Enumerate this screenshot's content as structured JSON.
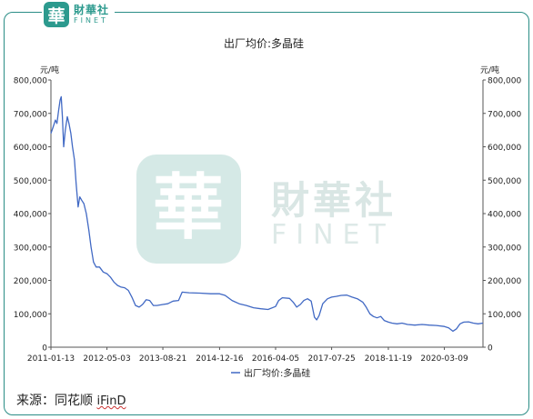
{
  "brand": {
    "name_cn": "財華社",
    "name_en": "FINET",
    "logo_char": "華"
  },
  "source": {
    "label": "来源：同花顺",
    "provider": "iFinD"
  },
  "colors": {
    "line": "#4169c4",
    "frame": "#2a8d86",
    "brand": "#2c9a8e",
    "watermark": "#cfe5e2"
  },
  "chart_data": {
    "type": "line",
    "title": "出厂均价:多晶硅",
    "ylabel_left": "元/吨",
    "ylabel_right": "元/吨",
    "ylim": [
      0,
      800000
    ],
    "yticks": [
      "0",
      "100,000",
      "200,000",
      "300,000",
      "400,000",
      "500,000",
      "600,000",
      "700,000",
      "800,000"
    ],
    "xlim": [
      "2011-01-13",
      "2021-01-31"
    ],
    "xticks": [
      "2011-01-13",
      "2012-05-03",
      "2013-08-21",
      "2014-12-16",
      "2016-04-05",
      "2017-07-25",
      "2018-11-19",
      "2020-03-09"
    ],
    "grid": false,
    "legend_position": "bottom",
    "series": [
      {
        "name": "出厂均价:多晶硅",
        "color": "#4169c4",
        "points": [
          [
            "2011-01-13",
            640000
          ],
          [
            "2011-02-01",
            660000
          ],
          [
            "2011-02-20",
            680000
          ],
          [
            "2011-03-05",
            670000
          ],
          [
            "2011-03-20",
            710000
          ],
          [
            "2011-04-01",
            740000
          ],
          [
            "2011-04-10",
            750000
          ],
          [
            "2011-04-20",
            690000
          ],
          [
            "2011-05-01",
            600000
          ],
          [
            "2011-05-15",
            650000
          ],
          [
            "2011-06-01",
            690000
          ],
          [
            "2011-06-15",
            670000
          ],
          [
            "2011-07-01",
            640000
          ],
          [
            "2011-07-15",
            600000
          ],
          [
            "2011-08-01",
            560000
          ],
          [
            "2011-08-15",
            490000
          ],
          [
            "2011-09-01",
            420000
          ],
          [
            "2011-09-15",
            450000
          ],
          [
            "2011-10-01",
            440000
          ],
          [
            "2011-10-20",
            430000
          ],
          [
            "2011-11-10",
            400000
          ],
          [
            "2011-12-01",
            350000
          ],
          [
            "2011-12-20",
            300000
          ],
          [
            "2012-01-10",
            255000
          ],
          [
            "2012-02-01",
            240000
          ],
          [
            "2012-03-01",
            240000
          ],
          [
            "2012-04-01",
            225000
          ],
          [
            "2012-05-03",
            220000
          ],
          [
            "2012-06-01",
            210000
          ],
          [
            "2012-07-01",
            195000
          ],
          [
            "2012-08-01",
            185000
          ],
          [
            "2012-09-01",
            180000
          ],
          [
            "2012-10-01",
            178000
          ],
          [
            "2012-11-01",
            170000
          ],
          [
            "2012-12-01",
            150000
          ],
          [
            "2013-01-01",
            125000
          ],
          [
            "2013-02-01",
            120000
          ],
          [
            "2013-03-01",
            128000
          ],
          [
            "2013-04-01",
            142000
          ],
          [
            "2013-05-01",
            140000
          ],
          [
            "2013-06-01",
            125000
          ],
          [
            "2013-07-01",
            125000
          ],
          [
            "2013-08-21",
            128000
          ],
          [
            "2013-10-01",
            130000
          ],
          [
            "2013-11-15",
            138000
          ],
          [
            "2014-01-01",
            140000
          ],
          [
            "2014-02-01",
            165000
          ],
          [
            "2014-04-01",
            163000
          ],
          [
            "2014-07-01",
            162000
          ],
          [
            "2014-10-01",
            160000
          ],
          [
            "2014-12-16",
            160000
          ],
          [
            "2015-02-01",
            155000
          ],
          [
            "2015-04-01",
            140000
          ],
          [
            "2015-06-01",
            130000
          ],
          [
            "2015-08-01",
            125000
          ],
          [
            "2015-10-01",
            118000
          ],
          [
            "2015-12-01",
            115000
          ],
          [
            "2016-02-01",
            113000
          ],
          [
            "2016-04-05",
            122000
          ],
          [
            "2016-05-01",
            140000
          ],
          [
            "2016-06-01",
            148000
          ],
          [
            "2016-08-01",
            146000
          ],
          [
            "2016-09-01",
            135000
          ],
          [
            "2016-10-01",
            120000
          ],
          [
            "2016-11-01",
            128000
          ],
          [
            "2016-12-01",
            140000
          ],
          [
            "2017-01-01",
            145000
          ],
          [
            "2017-02-01",
            138000
          ],
          [
            "2017-03-01",
            90000
          ],
          [
            "2017-03-20",
            82000
          ],
          [
            "2017-04-10",
            95000
          ],
          [
            "2017-05-10",
            130000
          ],
          [
            "2017-06-20",
            145000
          ],
          [
            "2017-07-25",
            150000
          ],
          [
            "2017-09-01",
            152000
          ],
          [
            "2017-10-15",
            155000
          ],
          [
            "2017-12-01",
            156000
          ],
          [
            "2018-01-15",
            150000
          ],
          [
            "2018-03-01",
            145000
          ],
          [
            "2018-04-15",
            135000
          ],
          [
            "2018-05-15",
            120000
          ],
          [
            "2018-06-15",
            100000
          ],
          [
            "2018-07-15",
            92000
          ],
          [
            "2018-08-15",
            88000
          ],
          [
            "2018-09-15",
            92000
          ],
          [
            "2018-10-15",
            80000
          ],
          [
            "2018-11-19",
            75000
          ],
          [
            "2018-12-20",
            72000
          ],
          [
            "2019-02-01",
            70000
          ],
          [
            "2019-03-15",
            72000
          ],
          [
            "2019-05-01",
            68000
          ],
          [
            "2019-07-01",
            66000
          ],
          [
            "2019-09-01",
            68000
          ],
          [
            "2019-11-01",
            66000
          ],
          [
            "2020-01-01",
            65000
          ],
          [
            "2020-03-09",
            62000
          ],
          [
            "2020-04-15",
            58000
          ],
          [
            "2020-05-20",
            48000
          ],
          [
            "2020-06-20",
            55000
          ],
          [
            "2020-07-20",
            70000
          ],
          [
            "2020-08-20",
            75000
          ],
          [
            "2020-10-01",
            76000
          ],
          [
            "2020-11-10",
            72000
          ],
          [
            "2020-12-20",
            70000
          ],
          [
            "2021-01-31",
            72000
          ]
        ]
      }
    ]
  }
}
